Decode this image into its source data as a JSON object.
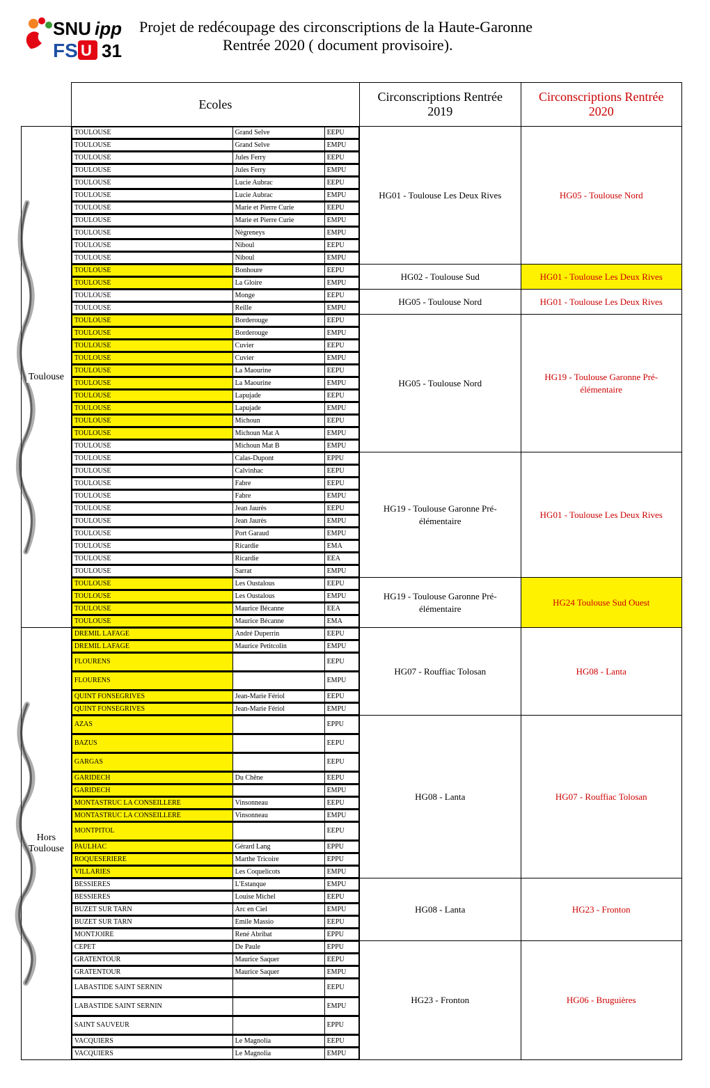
{
  "header": {
    "logo_text_top": "SNUipp",
    "logo_text_bottom": "FSU 31",
    "title_line1": "Projet de redécoupage des circonscriptions de la Haute-Garonne",
    "title_line2": "Rentrée 2020 ( document provisoire).",
    "logo_colors": {
      "orange": "#f58220",
      "red": "#e30613",
      "green": "#3a9b35",
      "blue": "#1e4fa3",
      "black": "#000000"
    }
  },
  "columns": {
    "ecoles": "Ecoles",
    "c2019": "Circonscriptions Rentrée 2019",
    "c2020": "Circonscriptions Rentrée 2020"
  },
  "sections": [
    {
      "side_label": "Toulouse",
      "groups": [
        {
          "rows": [
            {
              "commune": "TOULOUSE",
              "ecole": "Grand Selve",
              "type": "EEPU"
            },
            {
              "commune": "TOULOUSE",
              "ecole": "Grand Selve",
              "type": "EMPU"
            },
            {
              "commune": "TOULOUSE",
              "ecole": "Jules Ferry",
              "type": "EEPU"
            },
            {
              "commune": "TOULOUSE",
              "ecole": "Jules Ferry",
              "type": "EMPU"
            },
            {
              "commune": "TOULOUSE",
              "ecole": "Lucie Aubrac",
              "type": "EEPU"
            },
            {
              "commune": "TOULOUSE",
              "ecole": "Lucie Aubrac",
              "type": "EMPU"
            },
            {
              "commune": "TOULOUSE",
              "ecole": "Marie et Pierre Curie",
              "type": "EEPU"
            },
            {
              "commune": "TOULOUSE",
              "ecole": "Marie et Pierre Curie",
              "type": "EMPU"
            },
            {
              "commune": "TOULOUSE",
              "ecole": "Nègreneys",
              "type": "EMPU"
            },
            {
              "commune": "TOULOUSE",
              "ecole": "Niboul",
              "type": "EEPU"
            },
            {
              "commune": "TOULOUSE",
              "ecole": "Niboul",
              "type": "EMPU"
            }
          ],
          "c2019": "HG01 - Toulouse Les Deux Rives",
          "c2020": "HG05 - Toulouse Nord"
        },
        {
          "rows": [
            {
              "commune": "TOULOUSE",
              "ecole": "Bonhoure",
              "type": "EEPU",
              "hl": true
            },
            {
              "commune": "TOULOUSE",
              "ecole": "La Gloire",
              "type": "EMPU",
              "hl": true
            }
          ],
          "c2019": "HG02 - Toulouse Sud",
          "c2020": "HG01 - Toulouse Les Deux Rives",
          "c2020_hl": true
        },
        {
          "rows": [
            {
              "commune": "TOULOUSE",
              "ecole": "Monge",
              "type": "EEPU"
            },
            {
              "commune": "TOULOUSE",
              "ecole": "Reille",
              "type": "EMPU"
            }
          ],
          "c2019": "HG05 - Toulouse Nord",
          "c2020": "HG01 - Toulouse Les Deux Rives"
        },
        {
          "rows": [
            {
              "commune": "TOULOUSE",
              "ecole": "Borderouge",
              "type": "EEPU",
              "hl": true
            },
            {
              "commune": "TOULOUSE",
              "ecole": "Borderouge",
              "type": "EMPU",
              "hl": true
            },
            {
              "commune": "TOULOUSE",
              "ecole": "Cuvier",
              "type": "EEPU",
              "hl": true
            },
            {
              "commune": "TOULOUSE",
              "ecole": "Cuvier",
              "type": "EMPU",
              "hl": true
            },
            {
              "commune": "TOULOUSE",
              "ecole": "La Maourine",
              "type": "EEPU",
              "hl": true
            },
            {
              "commune": "TOULOUSE",
              "ecole": "La Maourine",
              "type": "EMPU",
              "hl": true
            },
            {
              "commune": "TOULOUSE",
              "ecole": "Lapujade",
              "type": "EEPU",
              "hl": true
            },
            {
              "commune": "TOULOUSE",
              "ecole": "Lapujade",
              "type": "EMPU",
              "hl": true
            },
            {
              "commune": "TOULOUSE",
              "ecole": "Michoun",
              "type": "EEPU",
              "hl": true
            },
            {
              "commune": "TOULOUSE",
              "ecole": "Michoun Mat A",
              "type": "EMPU",
              "hl": true
            },
            {
              "commune": "TOULOUSE",
              "ecole": "Michoun Mat B",
              "type": "EMPU"
            }
          ],
          "c2019": "HG05 - Toulouse Nord",
          "c2020": "HG19 - Toulouse Garonne Pré-élémentaire"
        },
        {
          "rows": [
            {
              "commune": "TOULOUSE",
              "ecole": "Calas-Dupont",
              "type": "EPPU"
            },
            {
              "commune": "TOULOUSE",
              "ecole": "Calvinhac",
              "type": "EEPU"
            },
            {
              "commune": "TOULOUSE",
              "ecole": "Fabre",
              "type": "EEPU"
            },
            {
              "commune": "TOULOUSE",
              "ecole": "Fabre",
              "type": "EMPU"
            },
            {
              "commune": "TOULOUSE",
              "ecole": "Jean Jaurès",
              "type": "EEPU"
            },
            {
              "commune": "TOULOUSE",
              "ecole": "Jean Jaurès",
              "type": "EMPU"
            },
            {
              "commune": "TOULOUSE",
              "ecole": "Port Garaud",
              "type": "EMPU"
            },
            {
              "commune": "TOULOUSE",
              "ecole": "Ricardie",
              "type": "EMA"
            },
            {
              "commune": "TOULOUSE",
              "ecole": "Ricardie",
              "type": "EEA"
            },
            {
              "commune": "TOULOUSE",
              "ecole": "Sarrat",
              "type": "EMPU"
            }
          ],
          "c2019": "HG19 - Toulouse Garonne Pré-élémentaire",
          "c2020": "HG01 - Toulouse Les Deux Rives"
        },
        {
          "rows": [
            {
              "commune": "TOULOUSE",
              "ecole": "Les Oustalous",
              "type": "EEPU",
              "hl": true
            },
            {
              "commune": "TOULOUSE",
              "ecole": "Les Oustalous",
              "type": "EMPU",
              "hl": true
            },
            {
              "commune": "TOULOUSE",
              "ecole": "Maurice Bécanne",
              "type": "EEA",
              "hl": true
            },
            {
              "commune": "TOULOUSE",
              "ecole": "Maurice Bécanne",
              "type": "EMA",
              "hl": true
            }
          ],
          "c2019": "HG19 - Toulouse Garonne Pré-élémentaire",
          "c2020": "HG24 Toulouse Sud Ouest",
          "c2020_hl": true
        }
      ]
    },
    {
      "side_label": "Hors Toulouse",
      "groups": [
        {
          "rows": [
            {
              "commune": "DREMIL LAFAGE",
              "ecole": "André Duperrin",
              "type": "EEPU",
              "hl": true
            },
            {
              "commune": "DREMIL LAFAGE",
              "ecole": "Maurice Petitcolin",
              "type": "EMPU",
              "hl": true
            },
            {
              "commune": "FLOURENS",
              "ecole": "",
              "type": "EEPU",
              "hl": true,
              "tall": true
            },
            {
              "commune": "FLOURENS",
              "ecole": "",
              "type": "EMPU",
              "hl": true,
              "tall": true
            },
            {
              "commune": "QUINT FONSEGRIVES",
              "ecole": "Jean-Marie Fériol",
              "type": "EEPU",
              "hl": true
            },
            {
              "commune": "QUINT FONSEGRIVES",
              "ecole": "Jean-Marie Fériol",
              "type": "EMPU",
              "hl": true
            }
          ],
          "c2019": "HG07 - Rouffiac Tolosan",
          "c2020": "HG08 - Lanta"
        },
        {
          "rows": [
            {
              "commune": "AZAS",
              "ecole": "",
              "type": "EPPU",
              "hl": true,
              "tall": true
            },
            {
              "commune": "BAZUS",
              "ecole": "",
              "type": "EEPU",
              "hl": true,
              "tall": true
            },
            {
              "commune": "GARGAS",
              "ecole": "",
              "type": "EEPU",
              "hl": true,
              "tall": true
            },
            {
              "commune": "GARIDECH",
              "ecole": "Du Chêne",
              "type": "EEPU",
              "hl": true
            },
            {
              "commune": "GARIDECH",
              "ecole": "",
              "type": "EMPU",
              "hl": true
            },
            {
              "commune": "MONTASTRUC LA CONSEILLERE",
              "ecole": "Vinsonneau",
              "type": "EEPU",
              "hl": true
            },
            {
              "commune": "MONTASTRUC LA CONSEILLERE",
              "ecole": "Vinsonneau",
              "type": "EMPU",
              "hl": true
            },
            {
              "commune": "MONTPITOL",
              "ecole": "",
              "type": "EEPU",
              "hl": true,
              "tall": true
            },
            {
              "commune": "PAULHAC",
              "ecole": "Gérard Lang",
              "type": "EPPU",
              "hl": true
            },
            {
              "commune": "ROQUESERIERE",
              "ecole": "Marthe Tricoire",
              "type": "EPPU",
              "hl": true
            },
            {
              "commune": "VILLARIES",
              "ecole": "Les Coquelicots",
              "type": "EMPU",
              "hl": true
            }
          ],
          "c2019": "HG08 - Lanta",
          "c2020": "HG07 - Rouffiac Tolosan"
        },
        {
          "rows": [
            {
              "commune": "BESSIERES",
              "ecole": "L'Estanque",
              "type": "EMPU"
            },
            {
              "commune": "BESSIERES",
              "ecole": "Louise Michel",
              "type": "EEPU"
            },
            {
              "commune": "BUZET SUR TARN",
              "ecole": "Arc en Ciel",
              "type": "EMPU"
            },
            {
              "commune": "BUZET SUR TARN",
              "ecole": "Emile Massio",
              "type": "EEPU"
            },
            {
              "commune": "MONTJOIRE",
              "ecole": "René Abribat",
              "type": "EPPU"
            }
          ],
          "c2019": "HG08 - Lanta",
          "c2020": "HG23 - Fronton"
        },
        {
          "rows": [
            {
              "commune": "CEPET",
              "ecole": "De Paule",
              "type": "EPPU"
            },
            {
              "commune": "GRATENTOUR",
              "ecole": "Maurice Saquer",
              "type": "EEPU"
            },
            {
              "commune": "GRATENTOUR",
              "ecole": "Maurice Saquer",
              "type": "EMPU"
            },
            {
              "commune": "LABASTIDE SAINT SERNIN",
              "ecole": "",
              "type": "EEPU",
              "tall": true
            },
            {
              "commune": "LABASTIDE SAINT SERNIN",
              "ecole": "",
              "type": "EMPU",
              "tall": true
            },
            {
              "commune": "SAINT SAUVEUR",
              "ecole": "",
              "type": "EPPU",
              "tall": true
            },
            {
              "commune": "VACQUIERS",
              "ecole": "Le Magnolia",
              "type": "EEPU"
            },
            {
              "commune": "VACQUIERS",
              "ecole": "Le Magnolia",
              "type": "EMPU"
            }
          ],
          "c2019": "HG23 - Fronton",
          "c2020": "HG06 - Bruguières"
        }
      ]
    }
  ],
  "colors": {
    "highlight": "#fff200",
    "red_text": "#cc0000",
    "border": "#000000"
  }
}
